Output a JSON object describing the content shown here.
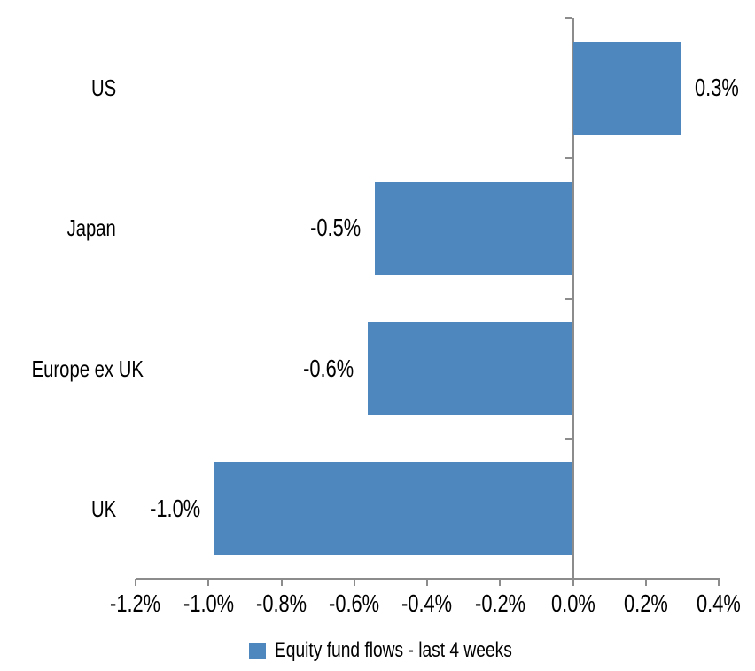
{
  "chart_data": {
    "type": "bar",
    "orientation": "horizontal",
    "title": "",
    "categories": [
      "US",
      "Japan",
      "Europe ex UK",
      "UK"
    ],
    "values": [
      0.3,
      -0.5,
      -0.6,
      -1.0
    ],
    "values_precise": [
      0.295,
      -0.543,
      -0.563,
      -0.984
    ],
    "data_labels": [
      "0.3%",
      "-0.5%",
      "-0.6%",
      "-1.0%"
    ],
    "series_name": "Equity fund flows - last 4 weeks",
    "x_tick_labels": [
      "-1.2%",
      "-1.0%",
      "-0.8%",
      "-0.6%",
      "-0.4%",
      "-0.2%",
      "0.0%",
      "0.2%",
      "0.4%"
    ],
    "x_tick_values": [
      -1.2,
      -1.0,
      -0.8,
      -0.6,
      -0.4,
      -0.2,
      0.0,
      0.2,
      0.4
    ],
    "xlim": [
      -1.2,
      0.4
    ],
    "unit": "%",
    "grid": false,
    "legend_position": "bottom",
    "colors": {
      "bar": "#4E86BE",
      "axis": "#8C8C8C",
      "text": "#000000",
      "background": "#FFFFFF"
    }
  }
}
